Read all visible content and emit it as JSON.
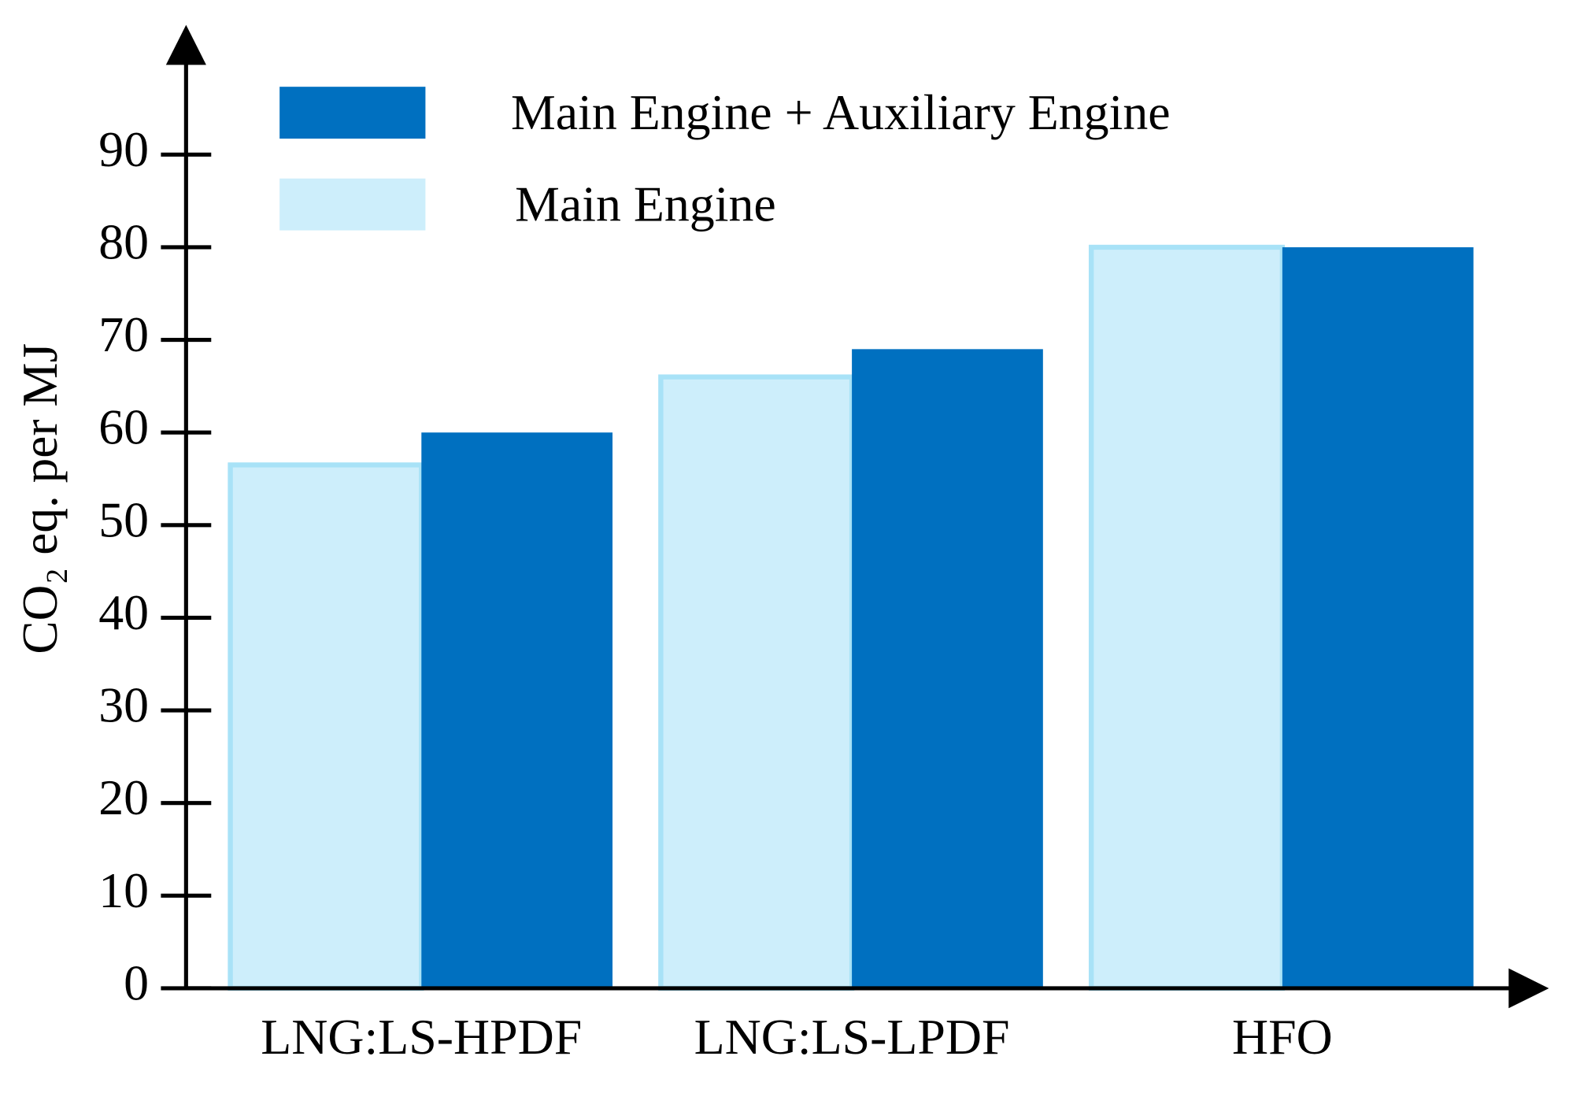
{
  "chart_data": {
    "type": "bar",
    "y_label": "CO₂ eq. per MJ",
    "categories": [
      "LNG:LS-HPDF",
      "LNG:LS-LPDF",
      "HFO"
    ],
    "series": [
      {
        "name": "Main Engine + Auxiliary Engine",
        "color": "#0070c0",
        "values": [
          60,
          69,
          80
        ]
      },
      {
        "name": "Main Engine",
        "color": "#cdeefb",
        "values": [
          56.5,
          66,
          80
        ]
      }
    ],
    "ylim": [
      0,
      104
    ],
    "yticks": [
      0,
      10,
      20,
      30,
      40,
      50,
      60,
      70,
      80,
      90
    ]
  }
}
